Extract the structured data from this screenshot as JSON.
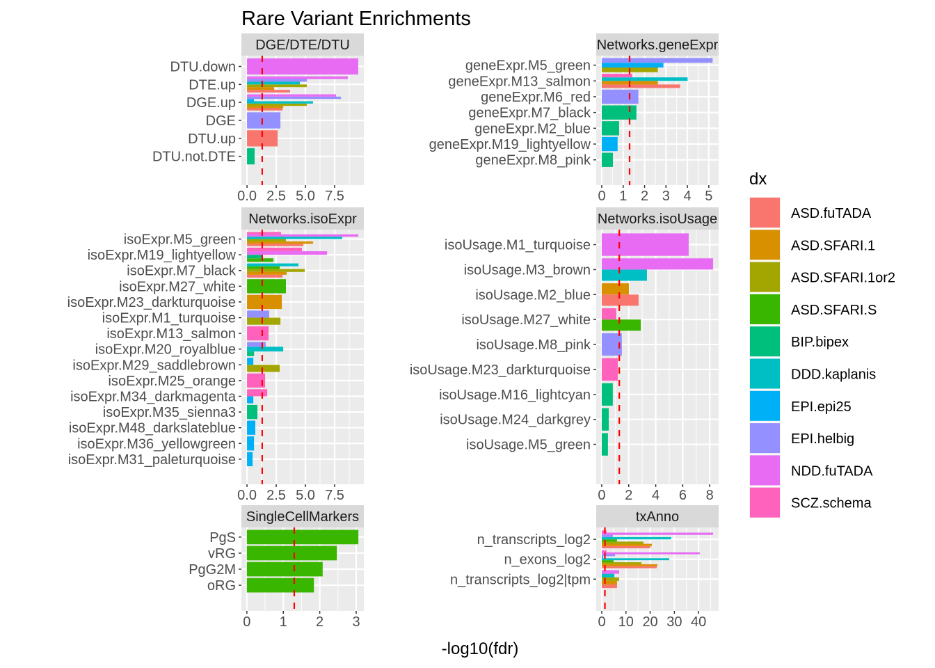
{
  "chart_data": {
    "type": "bar",
    "orientation": "horizontal",
    "layout": "faceted 3x2",
    "title": "Rare Variant Enrichments",
    "xlabel": "-log10(fdr)",
    "reference_line": {
      "x": 1.3,
      "color": "#FF0000",
      "style": "dashed"
    },
    "grid": true,
    "legend": {
      "title": "dx",
      "placement": "right",
      "entries": [
        {
          "name": "ASD.fuTADA",
          "color": "#F8766D"
        },
        {
          "name": "ASD.SFARI.1",
          "color": "#D89000"
        },
        {
          "name": "ASD.SFARI.1or2",
          "color": "#A3A500"
        },
        {
          "name": "ASD.SFARI.S",
          "color": "#39B600"
        },
        {
          "name": "BIP.bipex",
          "color": "#00BF7D"
        },
        {
          "name": "DDD.kaplanis",
          "color": "#00BFC4"
        },
        {
          "name": "EPI.epi25",
          "color": "#00B0F6"
        },
        {
          "name": "EPI.helbig",
          "color": "#9590FF"
        },
        {
          "name": "NDD.fuTADA",
          "color": "#E76BF3"
        },
        {
          "name": "SCZ.schema",
          "color": "#FF62BC"
        }
      ]
    },
    "panels": [
      {
        "strip": "DGE/DTE/DTU",
        "xlim": [
          -0.48,
          10.0
        ],
        "ticks": [
          0,
          2.5,
          5,
          7.5
        ],
        "tick_labels": [
          "0.0",
          "2.5",
          "5.0",
          "7.5"
        ],
        "categories": [
          {
            "label": "DTU.down",
            "bars": [
              {
                "dx": "NDD.fuTADA",
                "value": 9.52
              }
            ]
          },
          {
            "label": "DTE.up",
            "bars": [
              {
                "dx": "ASD.fuTADA",
                "value": 3.69
              },
              {
                "dx": "ASD.SFARI.1",
                "value": 2.32
              },
              {
                "dx": "ASD.SFARI.1or2",
                "value": 5.12
              },
              {
                "dx": "DDD.kaplanis",
                "value": 4.52
              },
              {
                "dx": "EPI.helbig",
                "value": 5.12
              },
              {
                "dx": "NDD.fuTADA",
                "value": 8.63
              }
            ]
          },
          {
            "label": "DGE.up",
            "bars": [
              {
                "dx": "ASD.fuTADA",
                "value": 3.04
              },
              {
                "dx": "ASD.SFARI.1",
                "value": 3.1
              },
              {
                "dx": "ASD.SFARI.1or2",
                "value": 5.12
              },
              {
                "dx": "DDD.kaplanis",
                "value": 5.65
              },
              {
                "dx": "EPI.epi25",
                "value": 0.6
              },
              {
                "dx": "EPI.helbig",
                "value": 8.04
              },
              {
                "dx": "NDD.fuTADA",
                "value": 7.62
              }
            ]
          },
          {
            "label": "DGE",
            "bars": [
              {
                "dx": "EPI.helbig",
                "value": 2.86
              }
            ]
          },
          {
            "label": "DTU.up",
            "bars": [
              {
                "dx": "ASD.fuTADA",
                "value": 2.62
              }
            ]
          },
          {
            "label": "DTU.not.DTE",
            "bars": [
              {
                "dx": "BIP.bipex",
                "value": 0.65
              }
            ]
          }
        ]
      },
      {
        "strip": "Networks.geneExpr",
        "xlim": [
          -0.26,
          5.46
        ],
        "ticks": [
          0,
          1,
          2,
          3,
          4,
          5
        ],
        "tick_labels": [
          "0",
          "1",
          "2",
          "3",
          "4",
          "5"
        ],
        "categories": [
          {
            "label": "geneExpr.M5_green",
            "bars": [
              {
                "dx": "ASD.SFARI.1or2",
                "value": 2.62
              },
              {
                "dx": "EPI.epi25",
                "value": 2.88
              },
              {
                "dx": "EPI.helbig",
                "value": 5.18
              }
            ]
          },
          {
            "label": "geneExpr.M13_salmon",
            "bars": [
              {
                "dx": "ASD.fuTADA",
                "value": 3.66
              },
              {
                "dx": "ASD.SFARI.1",
                "value": 2.62
              },
              {
                "dx": "DDD.kaplanis",
                "value": 4.01
              },
              {
                "dx": "SCZ.schema",
                "value": 1.42
              }
            ]
          },
          {
            "label": "geneExpr.M6_red",
            "bars": [
              {
                "dx": "EPI.helbig",
                "value": 1.71
              }
            ]
          },
          {
            "label": "geneExpr.M7_black",
            "bars": [
              {
                "dx": "BIP.bipex",
                "value": 1.62
              }
            ]
          },
          {
            "label": "geneExpr.M2_blue",
            "bars": [
              {
                "dx": "BIP.bipex",
                "value": 0.81
              }
            ]
          },
          {
            "label": "geneExpr.M19_lightyellow",
            "bars": [
              {
                "dx": "EPI.epi25",
                "value": 0.74
              }
            ]
          },
          {
            "label": "geneExpr.M8_pink",
            "bars": [
              {
                "dx": "BIP.bipex",
                "value": 0.52
              }
            ]
          }
        ]
      },
      {
        "strip": "Networks.isoExpr",
        "xlim": [
          -0.48,
          10.0
        ],
        "ticks": [
          0,
          2.5,
          5,
          7.5
        ],
        "tick_labels": [
          "0.0",
          "2.5",
          "5.0",
          "7.5"
        ],
        "categories": [
          {
            "label": "isoExpr.M5_green",
            "bars": [
              {
                "dx": "ASD.fuTADA",
                "value": 4.82
              },
              {
                "dx": "ASD.SFARI.1",
                "value": 5.65
              },
              {
                "dx": "ASD.SFARI.1or2",
                "value": 3.33
              },
              {
                "dx": "DDD.kaplanis",
                "value": 8.15
              },
              {
                "dx": "NDD.fuTADA",
                "value": 9.52
              },
              {
                "dx": "SCZ.schema",
                "value": 2.92
              }
            ]
          },
          {
            "label": "isoExpr.M19_lightyellow",
            "bars": [
              {
                "dx": "ASD.SFARI.S",
                "value": 2.26
              },
              {
                "dx": "BIP.bipex",
                "value": 1.31
              },
              {
                "dx": "NDD.fuTADA",
                "value": 6.85
              },
              {
                "dx": "SCZ.schema",
                "value": 4.7
              }
            ]
          },
          {
            "label": "isoExpr.M7_black",
            "bars": [
              {
                "dx": "ASD.fuTADA",
                "value": 3.04
              },
              {
                "dx": "ASD.SFARI.1",
                "value": 3.39
              },
              {
                "dx": "ASD.SFARI.1or2",
                "value": 4.94
              },
              {
                "dx": "ASD.SFARI.S",
                "value": 2.8
              },
              {
                "dx": "DDD.kaplanis",
                "value": 4.4
              }
            ]
          },
          {
            "label": "isoExpr.M27_white",
            "bars": [
              {
                "dx": "ASD.SFARI.S",
                "value": 3.33
              }
            ]
          },
          {
            "label": "isoExpr.M23_darkturquoise",
            "bars": [
              {
                "dx": "ASD.SFARI.1",
                "value": 2.98
              }
            ]
          },
          {
            "label": "isoExpr.M1_turquoise",
            "bars": [
              {
                "dx": "ASD.SFARI.1or2",
                "value": 2.86
              },
              {
                "dx": "EPI.helbig",
                "value": 1.9
              }
            ]
          },
          {
            "label": "isoExpr.M13_salmon",
            "bars": [
              {
                "dx": "SCZ.schema",
                "value": 1.85
              }
            ]
          },
          {
            "label": "isoExpr.M20_royalblue",
            "bars": [
              {
                "dx": "BIP.bipex",
                "value": 0.6
              },
              {
                "dx": "DDD.kaplanis",
                "value": 3.1
              },
              {
                "dx": "EPI.helbig",
                "value": 1.6
              }
            ]
          },
          {
            "label": "isoExpr.M29_saddlebrown",
            "bars": [
              {
                "dx": "ASD.SFARI.1or2",
                "value": 2.8
              },
              {
                "dx": "EPI.epi25",
                "value": 0.54
              }
            ]
          },
          {
            "label": "isoExpr.M25_orange",
            "bars": [
              {
                "dx": "SCZ.schema",
                "value": 1.55
              }
            ]
          },
          {
            "label": "isoExpr.M34_darkmagenta",
            "bars": [
              {
                "dx": "EPI.epi25",
                "value": 0.54
              },
              {
                "dx": "SCZ.schema",
                "value": 1.73
              }
            ]
          },
          {
            "label": "isoExpr.M35_sienna3",
            "bars": [
              {
                "dx": "BIP.bipex",
                "value": 0.89
              }
            ]
          },
          {
            "label": "isoExpr.M48_darkslateblue",
            "bars": [
              {
                "dx": "EPI.epi25",
                "value": 0.71
              }
            ]
          },
          {
            "label": "isoExpr.M36_yellowgreen",
            "bars": [
              {
                "dx": "EPI.epi25",
                "value": 0.6
              }
            ]
          },
          {
            "label": "isoExpr.M31_paleturquoise",
            "bars": [
              {
                "dx": "EPI.epi25",
                "value": 0.48
              }
            ]
          }
        ]
      },
      {
        "strip": "Networks.isoUsage",
        "xlim": [
          -0.41,
          8.66
        ],
        "ticks": [
          0,
          2,
          4,
          6,
          8
        ],
        "tick_labels": [
          "0",
          "2",
          "4",
          "6",
          "8"
        ],
        "categories": [
          {
            "label": "isoUsage.M1_turquoise",
            "bars": [
              {
                "dx": "NDD.fuTADA",
                "value": 6.44
              }
            ]
          },
          {
            "label": "isoUsage.M3_brown",
            "bars": [
              {
                "dx": "DDD.kaplanis",
                "value": 3.35
              },
              {
                "dx": "NDD.fuTADA",
                "value": 8.25
              }
            ]
          },
          {
            "label": "isoUsage.M2_blue",
            "bars": [
              {
                "dx": "ASD.fuTADA",
                "value": 2.73
              },
              {
                "dx": "ASD.SFARI.1",
                "value": 2.01
              }
            ]
          },
          {
            "label": "isoUsage.M27_white",
            "bars": [
              {
                "dx": "ASD.SFARI.S",
                "value": 2.89
              },
              {
                "dx": "SCZ.schema",
                "value": 1.08
              }
            ]
          },
          {
            "label": "isoUsage.M8_pink",
            "bars": [
              {
                "dx": "EPI.helbig",
                "value": 1.49
              }
            ]
          },
          {
            "label": "isoUsage.M23_darkturquoise",
            "bars": [
              {
                "dx": "SCZ.schema",
                "value": 1.19
              }
            ]
          },
          {
            "label": "isoUsage.M16_lightcyan",
            "bars": [
              {
                "dx": "BIP.bipex",
                "value": 0.82
              }
            ]
          },
          {
            "label": "isoUsage.M24_darkgrey",
            "bars": [
              {
                "dx": "BIP.bipex",
                "value": 0.52
              }
            ]
          },
          {
            "label": "isoUsage.M5_green",
            "bars": [
              {
                "dx": "BIP.bipex",
                "value": 0.46
              }
            ]
          }
        ]
      },
      {
        "strip": "SingleCellMarkers",
        "xlim": [
          -0.15,
          3.21
        ],
        "ticks": [
          0,
          1,
          2,
          3
        ],
        "tick_labels": [
          "0",
          "1",
          "2",
          "3"
        ],
        "categories": [
          {
            "label": "PgS",
            "bars": [
              {
                "dx": "ASD.SFARI.S",
                "value": 3.06
              }
            ]
          },
          {
            "label": "vRG",
            "bars": [
              {
                "dx": "ASD.SFARI.S",
                "value": 2.47
              }
            ]
          },
          {
            "label": "PgG2M",
            "bars": [
              {
                "dx": "ASD.SFARI.S",
                "value": 2.08
              }
            ]
          },
          {
            "label": "oRG",
            "bars": [
              {
                "dx": "ASD.SFARI.S",
                "value": 1.84
              }
            ]
          }
        ]
      },
      {
        "strip": "txAnno",
        "xlim": [
          -2.3,
          48.3
        ],
        "ticks": [
          0,
          10,
          20,
          30,
          40
        ],
        "tick_labels": [
          "0",
          "10",
          "20",
          "30",
          "40"
        ],
        "categories": [
          {
            "label": "n_transcripts_log2",
            "bars": [
              {
                "dx": "ASD.fuTADA",
                "value": 20.1
              },
              {
                "dx": "ASD.SFARI.1",
                "value": 20.7
              },
              {
                "dx": "ASD.SFARI.1or2",
                "value": 17.2
              },
              {
                "dx": "ASD.SFARI.S",
                "value": 6.3
              },
              {
                "dx": "DDD.kaplanis",
                "value": 28.7
              },
              {
                "dx": "EPI.helbig",
                "value": 4.6
              },
              {
                "dx": "NDD.fuTADA",
                "value": 46.0
              },
              {
                "dx": "SCZ.schema",
                "value": 2.0
              }
            ]
          },
          {
            "label": "n_exons_log2",
            "bars": [
              {
                "dx": "ASD.fuTADA",
                "value": 22.7
              },
              {
                "dx": "ASD.SFARI.1",
                "value": 23.0
              },
              {
                "dx": "ASD.SFARI.1or2",
                "value": 16.4
              },
              {
                "dx": "ASD.SFARI.S",
                "value": 4.9
              },
              {
                "dx": "DDD.kaplanis",
                "value": 27.9
              },
              {
                "dx": "EPI.epi25",
                "value": 0.6
              },
              {
                "dx": "EPI.helbig",
                "value": 5.5
              },
              {
                "dx": "NDD.fuTADA",
                "value": 40.5
              },
              {
                "dx": "SCZ.schema",
                "value": 2.0
              }
            ]
          },
          {
            "label": "n_transcripts_log2|tpm",
            "bars": [
              {
                "dx": "ASD.fuTADA",
                "value": 6.3
              },
              {
                "dx": "ASD.SFARI.1",
                "value": 6.3
              },
              {
                "dx": "ASD.SFARI.1or2",
                "value": 7.2
              },
              {
                "dx": "DDD.kaplanis",
                "value": 5.2
              },
              {
                "dx": "NDD.fuTADA",
                "value": 7.2
              }
            ]
          }
        ]
      }
    ]
  }
}
